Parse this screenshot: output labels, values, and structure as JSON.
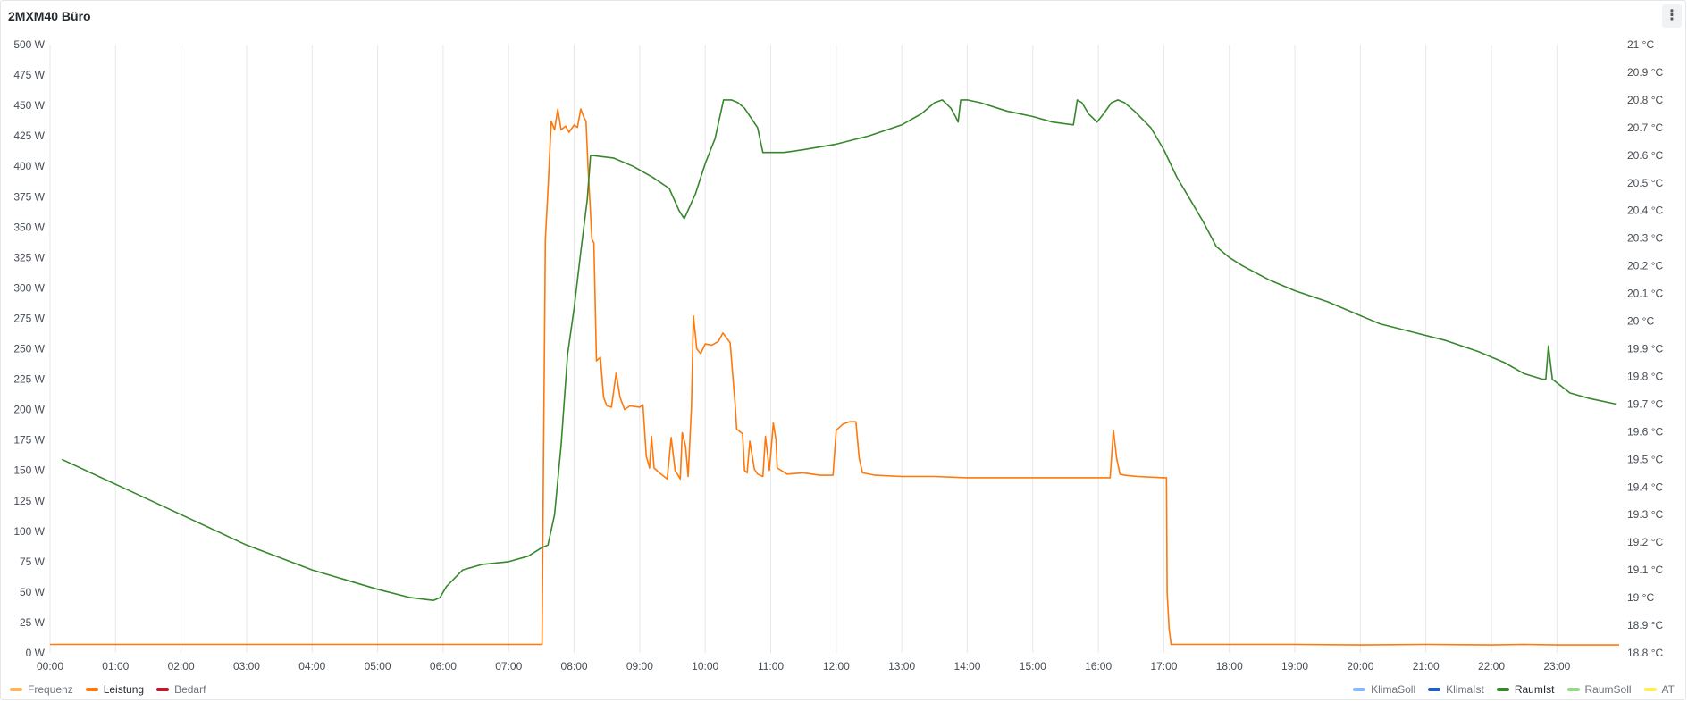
{
  "panel": {
    "title": "2MXM40 Büro",
    "menu_icon": "vertical-ellipsis-icon",
    "menu_glyph": "⋮"
  },
  "chart_data": {
    "type": "line",
    "title": "2MXM40 Büro",
    "x_ticks": [
      "00:00",
      "01:00",
      "02:00",
      "03:00",
      "04:00",
      "05:00",
      "06:00",
      "07:00",
      "08:00",
      "09:00",
      "10:00",
      "11:00",
      "12:00",
      "13:00",
      "14:00",
      "15:00",
      "16:00",
      "17:00",
      "18:00",
      "19:00",
      "20:00",
      "21:00",
      "22:00",
      "23:00"
    ],
    "x_unit": "hours",
    "xlim": [
      0,
      23.95
    ],
    "y_left": {
      "unit": "W",
      "ylim": [
        0,
        500
      ],
      "ticks": [
        "0 W",
        "25 W",
        "50 W",
        "75 W",
        "100 W",
        "125 W",
        "150 W",
        "175 W",
        "200 W",
        "225 W",
        "250 W",
        "275 W",
        "300 W",
        "325 W",
        "350 W",
        "375 W",
        "400 W",
        "425 W",
        "450 W",
        "475 W",
        "500 W"
      ]
    },
    "y_right": {
      "unit": "°C",
      "ylim": [
        18.8,
        21
      ],
      "ticks": [
        "18.8 °C",
        "18.9 °C",
        "19 °C",
        "19.1 °C",
        "19.2 °C",
        "19.3 °C",
        "19.4 °C",
        "19.5 °C",
        "19.6 °C",
        "19.7 °C",
        "19.8 °C",
        "19.9 °C",
        "20 °C",
        "20.1 °C",
        "20.2 °C",
        "20.3 °C",
        "20.4 °C",
        "20.5 °C",
        "20.6 °C",
        "20.7 °C",
        "20.8 °C",
        "20.9 °C",
        "21 °C"
      ]
    },
    "grid": "vertical",
    "series": [
      {
        "name": "Leistung",
        "axis": "left",
        "color": "#ff780a",
        "points": [
          [
            0,
            7
          ],
          [
            7.51,
            7
          ],
          [
            7.53,
            150
          ],
          [
            7.56,
            340
          ],
          [
            7.6,
            380
          ],
          [
            7.65,
            437
          ],
          [
            7.7,
            430
          ],
          [
            7.75,
            447
          ],
          [
            7.8,
            430
          ],
          [
            7.87,
            433
          ],
          [
            7.92,
            428
          ],
          [
            8.0,
            434
          ],
          [
            8.05,
            432
          ],
          [
            8.1,
            447
          ],
          [
            8.15,
            440
          ],
          [
            8.18,
            437
          ],
          [
            8.21,
            400
          ],
          [
            8.27,
            340
          ],
          [
            8.3,
            337
          ],
          [
            8.34,
            240
          ],
          [
            8.4,
            243
          ],
          [
            8.45,
            210
          ],
          [
            8.5,
            203
          ],
          [
            8.57,
            202
          ],
          [
            8.64,
            230
          ],
          [
            8.7,
            210
          ],
          [
            8.77,
            200
          ],
          [
            8.85,
            203
          ],
          [
            9.0,
            202
          ],
          [
            9.05,
            204
          ],
          [
            9.1,
            162
          ],
          [
            9.15,
            152
          ],
          [
            9.18,
            178
          ],
          [
            9.22,
            152
          ],
          [
            9.3,
            148
          ],
          [
            9.42,
            143
          ],
          [
            9.48,
            177
          ],
          [
            9.54,
            150
          ],
          [
            9.62,
            143
          ],
          [
            9.65,
            181
          ],
          [
            9.7,
            170
          ],
          [
            9.74,
            145
          ],
          [
            9.79,
            202
          ],
          [
            9.82,
            277
          ],
          [
            9.87,
            250
          ],
          [
            9.93,
            246
          ],
          [
            10.0,
            254
          ],
          [
            10.1,
            253
          ],
          [
            10.2,
            256
          ],
          [
            10.27,
            263
          ],
          [
            10.38,
            255
          ],
          [
            10.46,
            202
          ],
          [
            10.48,
            184
          ],
          [
            10.57,
            180
          ],
          [
            10.6,
            150
          ],
          [
            10.64,
            148
          ],
          [
            10.68,
            174
          ],
          [
            10.75,
            151
          ],
          [
            10.8,
            147
          ],
          [
            10.88,
            145
          ],
          [
            10.92,
            178
          ],
          [
            10.98,
            150
          ],
          [
            11.04,
            189
          ],
          [
            11.08,
            175
          ],
          [
            11.1,
            152
          ],
          [
            11.25,
            147
          ],
          [
            11.5,
            148
          ],
          [
            11.75,
            146
          ],
          [
            11.95,
            146
          ],
          [
            12.0,
            183
          ],
          [
            12.1,
            188
          ],
          [
            12.2,
            190
          ],
          [
            12.3,
            190
          ],
          [
            12.35,
            160
          ],
          [
            12.4,
            148
          ],
          [
            12.6,
            146
          ],
          [
            13.0,
            145
          ],
          [
            13.5,
            145
          ],
          [
            14.0,
            144
          ],
          [
            14.5,
            144
          ],
          [
            15.0,
            144
          ],
          [
            15.5,
            144
          ],
          [
            16.0,
            144
          ],
          [
            16.18,
            144
          ],
          [
            16.23,
            183
          ],
          [
            16.28,
            160
          ],
          [
            16.33,
            147
          ],
          [
            16.4,
            146
          ],
          [
            16.6,
            145
          ],
          [
            17.0,
            144
          ],
          [
            17.04,
            144
          ],
          [
            17.05,
            50
          ],
          [
            17.08,
            20
          ],
          [
            17.11,
            7
          ],
          [
            17.5,
            7
          ],
          [
            18.0,
            7
          ],
          [
            19.0,
            7
          ],
          [
            20.0,
            6.5
          ],
          [
            21.0,
            7
          ],
          [
            22.0,
            6.5
          ],
          [
            22.5,
            7
          ],
          [
            23.0,
            6.5
          ],
          [
            23.95,
            6.5
          ]
        ]
      },
      {
        "name": "RaumIst",
        "axis": "right",
        "color": "#37872d",
        "points": [
          [
            0.18,
            19.5
          ],
          [
            1,
            19.41
          ],
          [
            2,
            19.3
          ],
          [
            3,
            19.19
          ],
          [
            4,
            19.1
          ],
          [
            5,
            19.03
          ],
          [
            5.5,
            19.0
          ],
          [
            5.85,
            18.99
          ],
          [
            5.95,
            19.0
          ],
          [
            6.05,
            19.04
          ],
          [
            6.3,
            19.1
          ],
          [
            6.6,
            19.12
          ],
          [
            7.0,
            19.13
          ],
          [
            7.3,
            19.15
          ],
          [
            7.5,
            19.18
          ],
          [
            7.6,
            19.19
          ],
          [
            7.7,
            19.3
          ],
          [
            7.8,
            19.55
          ],
          [
            7.9,
            19.88
          ],
          [
            8.0,
            20.05
          ],
          [
            8.1,
            20.25
          ],
          [
            8.2,
            20.44
          ],
          [
            8.25,
            20.6
          ],
          [
            8.6,
            20.59
          ],
          [
            8.9,
            20.56
          ],
          [
            9.2,
            20.52
          ],
          [
            9.45,
            20.48
          ],
          [
            9.6,
            20.4
          ],
          [
            9.68,
            20.37
          ],
          [
            9.85,
            20.46
          ],
          [
            10.0,
            20.57
          ],
          [
            10.15,
            20.66
          ],
          [
            10.28,
            20.8
          ],
          [
            10.4,
            20.8
          ],
          [
            10.5,
            20.79
          ],
          [
            10.6,
            20.77
          ],
          [
            10.8,
            20.7
          ],
          [
            10.88,
            20.61
          ],
          [
            11.2,
            20.61
          ],
          [
            11.5,
            20.62
          ],
          [
            12.0,
            20.64
          ],
          [
            12.5,
            20.67
          ],
          [
            13.0,
            20.71
          ],
          [
            13.3,
            20.75
          ],
          [
            13.5,
            20.79
          ],
          [
            13.62,
            20.8
          ],
          [
            13.75,
            20.77
          ],
          [
            13.82,
            20.74
          ],
          [
            13.86,
            20.72
          ],
          [
            13.9,
            20.8
          ],
          [
            14.0,
            20.8
          ],
          [
            14.2,
            20.79
          ],
          [
            14.6,
            20.76
          ],
          [
            15.0,
            20.74
          ],
          [
            15.3,
            20.72
          ],
          [
            15.62,
            20.71
          ],
          [
            15.68,
            20.8
          ],
          [
            15.75,
            20.79
          ],
          [
            15.85,
            20.75
          ],
          [
            15.98,
            20.72
          ],
          [
            16.08,
            20.75
          ],
          [
            16.2,
            20.79
          ],
          [
            16.3,
            20.8
          ],
          [
            16.4,
            20.79
          ],
          [
            16.55,
            20.76
          ],
          [
            16.8,
            20.7
          ],
          [
            17.0,
            20.62
          ],
          [
            17.2,
            20.52
          ],
          [
            17.4,
            20.44
          ],
          [
            17.6,
            20.36
          ],
          [
            17.8,
            20.27
          ],
          [
            18.0,
            20.23
          ],
          [
            18.2,
            20.2
          ],
          [
            18.6,
            20.15
          ],
          [
            19.0,
            20.11
          ],
          [
            19.5,
            20.07
          ],
          [
            20.0,
            20.02
          ],
          [
            20.3,
            19.99
          ],
          [
            20.8,
            19.96
          ],
          [
            21.3,
            19.93
          ],
          [
            21.8,
            19.89
          ],
          [
            22.2,
            19.85
          ],
          [
            22.5,
            19.81
          ],
          [
            22.78,
            19.79
          ],
          [
            22.83,
            19.79
          ],
          [
            22.87,
            19.91
          ],
          [
            22.93,
            19.79
          ],
          [
            23.2,
            19.74
          ],
          [
            23.5,
            19.72
          ],
          [
            23.9,
            19.7
          ]
        ]
      }
    ],
    "legend": {
      "placement": "bottom",
      "left": [
        {
          "label": "Frequenz",
          "color": "#ffb357",
          "active": false
        },
        {
          "label": "Leistung",
          "color": "#ff780a",
          "active": true
        },
        {
          "label": "Bedarf",
          "color": "#c4162a",
          "active": false
        }
      ],
      "right": [
        {
          "label": "KlimaSoll",
          "color": "#8ab8ff",
          "active": false
        },
        {
          "label": "KlimaIst",
          "color": "#1f60c4",
          "active": false
        },
        {
          "label": "RaumIst",
          "color": "#37872d",
          "active": true
        },
        {
          "label": "RaumSoll",
          "color": "#96d98d",
          "active": false
        },
        {
          "label": "AT",
          "color": "#ffee52",
          "active": false
        }
      ]
    }
  }
}
